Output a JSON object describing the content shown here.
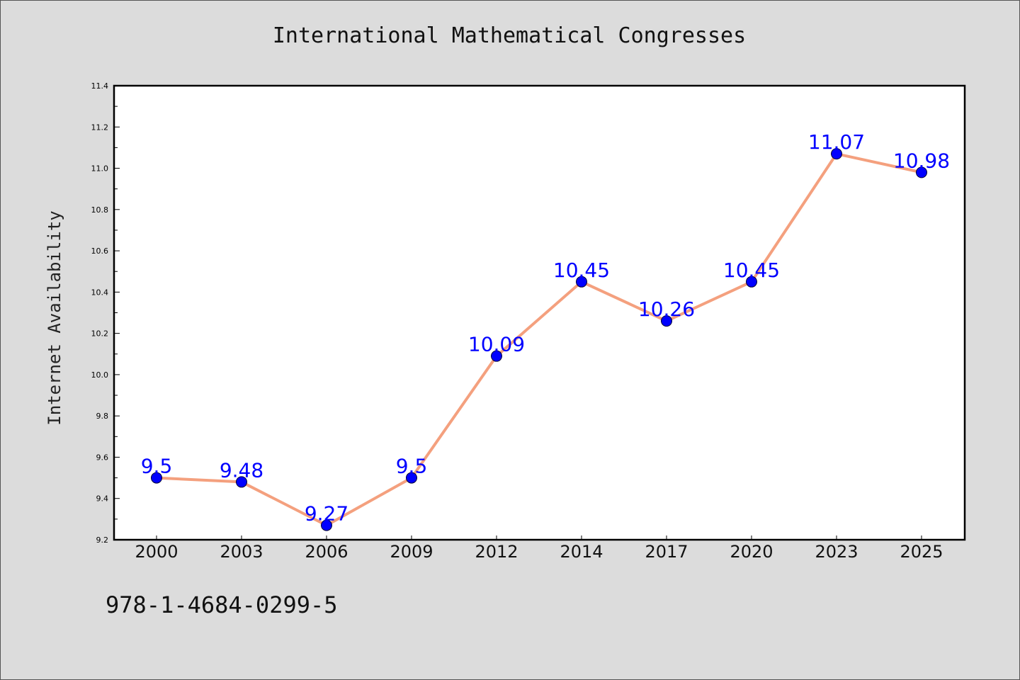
{
  "chart_data": {
    "type": "line",
    "title": "International Mathematical Congresses",
    "ylabel": "Internet Availability",
    "xlabel": "",
    "categories": [
      "2000",
      "2003",
      "2006",
      "2009",
      "2012",
      "2014",
      "2017",
      "2020",
      "2023",
      "2025"
    ],
    "series": [
      {
        "values": [
          9.5,
          9.48,
          9.27,
          9.5,
          10.09,
          10.45,
          10.26,
          10.45,
          11.07,
          10.98
        ]
      }
    ],
    "data_labels": [
      "9.5",
      "9.48",
      "9.27",
      "9.5",
      "10.09",
      "10.45",
      "10.26",
      "10.45",
      "11.07",
      "10.98"
    ],
    "ylim": [
      9.2,
      11.4
    ],
    "y_ticks": [
      "9.2",
      "9.4",
      "9.6",
      "9.8",
      "10.0",
      "10.2",
      "10.4",
      "10.6",
      "10.8",
      "11.0",
      "11.2",
      "11.4"
    ],
    "grid": false,
    "line_color": "#f4a07e",
    "marker_color": "#0000ff",
    "label_color": "#0000ff"
  },
  "footer": {
    "code": "978-1-4684-0299-5"
  }
}
